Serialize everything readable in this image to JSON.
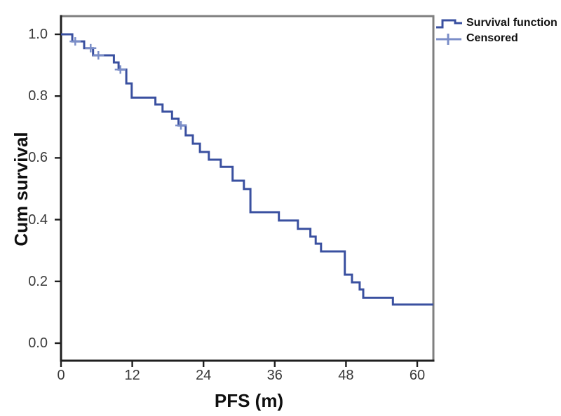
{
  "figure": {
    "background": "#ffffff"
  },
  "chart_data": {
    "type": "line",
    "subtype": "kaplan-meier-step-curve",
    "title": "",
    "xlabel": "PFS (m)",
    "ylabel": "Cum survival",
    "xlim": [
      0,
      62.7
    ],
    "ylim": [
      -0.057,
      1.059
    ],
    "x_ticks": [
      "0",
      "12",
      "24",
      "36",
      "48",
      "60"
    ],
    "y_ticks": [
      "0.0",
      "0.2",
      "0.4",
      "0.6",
      "0.8",
      "1.0"
    ],
    "grid": false,
    "legend": {
      "position": "top-right-outside",
      "entries": [
        {
          "label": "Survival function",
          "marker": "step-line",
          "color": "#3A50A0"
        },
        {
          "label": "Censored",
          "marker": "plus",
          "color": "#7B8EC8"
        }
      ]
    },
    "series": [
      {
        "name": "Survival function",
        "color": "#3A50A0",
        "line_width": 3,
        "step_points": [
          [
            0,
            1.0
          ],
          [
            1.9,
            0.977
          ],
          [
            3.9,
            0.955
          ],
          [
            5.4,
            0.932
          ],
          [
            8.9,
            0.909
          ],
          [
            9.7,
            0.886
          ],
          [
            11.0,
            0.841
          ],
          [
            11.9,
            0.795
          ],
          [
            15.9,
            0.773
          ],
          [
            17.1,
            0.75
          ],
          [
            18.7,
            0.727
          ],
          [
            19.8,
            0.705
          ],
          [
            21.0,
            0.673
          ],
          [
            22.2,
            0.646
          ],
          [
            23.4,
            0.619
          ],
          [
            24.9,
            0.594
          ],
          [
            26.9,
            0.571
          ],
          [
            28.9,
            0.526
          ],
          [
            30.8,
            0.499
          ],
          [
            31.9,
            0.424
          ],
          [
            36.7,
            0.397
          ],
          [
            39.9,
            0.37
          ],
          [
            42.0,
            0.345
          ],
          [
            42.9,
            0.322
          ],
          [
            43.8,
            0.297
          ],
          [
            47.8,
            0.222
          ],
          [
            49.0,
            0.197
          ],
          [
            50.3,
            0.174
          ],
          [
            50.9,
            0.147
          ],
          [
            55.9,
            0.125
          ]
        ],
        "end_x": 62.7
      }
    ],
    "censored_points": [
      [
        2.4,
        0.977
      ],
      [
        5.0,
        0.955
      ],
      [
        6.3,
        0.932
      ],
      [
        10.0,
        0.886
      ],
      [
        20.2,
        0.705
      ]
    ],
    "colors": {
      "frame_gray": "#7F7F7F",
      "axis_dark": "#1F1F1F",
      "tick_label": "#3A3A3A",
      "axis_title": "#0F0F0F",
      "censored": "#7B8EC8"
    }
  }
}
